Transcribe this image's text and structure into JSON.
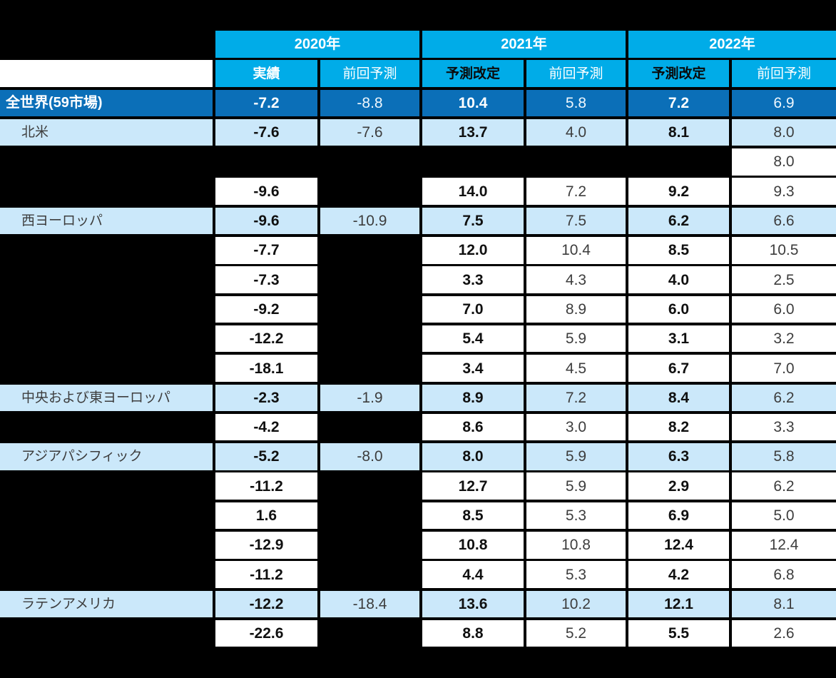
{
  "colors": {
    "page_background": "#000000",
    "header_cyan": "#00ACE8",
    "total_row_blue": "#0B6FB8",
    "region_row_blue": "#CBE8FA",
    "plain_cell_white": "#FFFFFF",
    "emphasis_text": "#101010",
    "secondary_text": "#3D3D3D",
    "header_text_white": "#FFFFFF"
  },
  "table": {
    "year_headers": [
      "2020年",
      "2021年",
      "2022年"
    ],
    "sub_headers": [
      {
        "label": "実績",
        "tone": "white-bold"
      },
      {
        "label": "前回予測",
        "tone": "white"
      },
      {
        "label": "予測改定",
        "tone": "black-bold"
      },
      {
        "label": "前回予測",
        "tone": "white"
      },
      {
        "label": "予測改定",
        "tone": "black-bold"
      },
      {
        "label": "前回予測",
        "tone": "white"
      }
    ],
    "rows": [
      {
        "label": "全世界(59市場)",
        "style": "total",
        "cells": [
          {
            "v": "-7.2",
            "bg": "dark",
            "em": true
          },
          {
            "v": "-8.8",
            "bg": "dark",
            "em": false
          },
          {
            "v": "10.4",
            "bg": "dark",
            "em": true
          },
          {
            "v": "5.8",
            "bg": "dark",
            "em": false
          },
          {
            "v": "7.2",
            "bg": "dark",
            "em": true
          },
          {
            "v": "6.9",
            "bg": "dark",
            "em": false
          }
        ]
      },
      {
        "label": "北米",
        "style": "region",
        "cells": [
          {
            "v": "-7.6",
            "bg": "light",
            "em": true
          },
          {
            "v": "-7.6",
            "bg": "light",
            "em": false
          },
          {
            "v": "13.7",
            "bg": "light",
            "em": true
          },
          {
            "v": "4.0",
            "bg": "light",
            "em": false
          },
          {
            "v": "8.1",
            "bg": "light",
            "em": true
          },
          {
            "v": "8.0",
            "bg": "light",
            "em": false
          }
        ]
      },
      {
        "label": "",
        "style": "hidden",
        "cells": [
          {
            "v": "",
            "bg": "none",
            "em": false
          },
          {
            "v": "",
            "bg": "none",
            "em": false
          },
          {
            "v": "",
            "bg": "none",
            "em": false
          },
          {
            "v": "",
            "bg": "none",
            "em": false
          },
          {
            "v": "",
            "bg": "none",
            "em": false
          },
          {
            "v": "8.0",
            "bg": "white",
            "em": false
          }
        ]
      },
      {
        "label": "",
        "style": "hidden",
        "cells": [
          {
            "v": "-9.6",
            "bg": "white",
            "em": true
          },
          {
            "v": "",
            "bg": "none",
            "em": false
          },
          {
            "v": "14.0",
            "bg": "white",
            "em": true
          },
          {
            "v": "7.2",
            "bg": "white",
            "em": false
          },
          {
            "v": "9.2",
            "bg": "white",
            "em": true
          },
          {
            "v": "9.3",
            "bg": "white",
            "em": false
          }
        ]
      },
      {
        "label": "西ヨーロッパ",
        "style": "region",
        "cells": [
          {
            "v": "-9.6",
            "bg": "light",
            "em": true
          },
          {
            "v": "-10.9",
            "bg": "light",
            "em": false
          },
          {
            "v": "7.5",
            "bg": "light",
            "em": true
          },
          {
            "v": "7.5",
            "bg": "light",
            "em": false
          },
          {
            "v": "6.2",
            "bg": "light",
            "em": true
          },
          {
            "v": "6.6",
            "bg": "light",
            "em": false
          }
        ]
      },
      {
        "label": "",
        "style": "hidden",
        "cells": [
          {
            "v": "-7.7",
            "bg": "white",
            "em": true
          },
          {
            "v": "",
            "bg": "none",
            "em": false
          },
          {
            "v": "12.0",
            "bg": "white",
            "em": true
          },
          {
            "v": "10.4",
            "bg": "white",
            "em": false
          },
          {
            "v": "8.5",
            "bg": "white",
            "em": true
          },
          {
            "v": "10.5",
            "bg": "white",
            "em": false
          }
        ]
      },
      {
        "label": "",
        "style": "hidden",
        "cells": [
          {
            "v": "-7.3",
            "bg": "white",
            "em": true
          },
          {
            "v": "",
            "bg": "none",
            "em": false
          },
          {
            "v": "3.3",
            "bg": "white",
            "em": true
          },
          {
            "v": "4.3",
            "bg": "white",
            "em": false
          },
          {
            "v": "4.0",
            "bg": "white",
            "em": true
          },
          {
            "v": "2.5",
            "bg": "white",
            "em": false
          }
        ]
      },
      {
        "label": "",
        "style": "hidden",
        "cells": [
          {
            "v": "-9.2",
            "bg": "white",
            "em": true
          },
          {
            "v": "",
            "bg": "none",
            "em": false
          },
          {
            "v": "7.0",
            "bg": "white",
            "em": true
          },
          {
            "v": "8.9",
            "bg": "white",
            "em": false
          },
          {
            "v": "6.0",
            "bg": "white",
            "em": true
          },
          {
            "v": "6.0",
            "bg": "white",
            "em": false
          }
        ]
      },
      {
        "label": "",
        "style": "hidden",
        "cells": [
          {
            "v": "-12.2",
            "bg": "white",
            "em": true
          },
          {
            "v": "",
            "bg": "none",
            "em": false
          },
          {
            "v": "5.4",
            "bg": "white",
            "em": true
          },
          {
            "v": "5.9",
            "bg": "white",
            "em": false
          },
          {
            "v": "3.1",
            "bg": "white",
            "em": true
          },
          {
            "v": "3.2",
            "bg": "white",
            "em": false
          }
        ]
      },
      {
        "label": "",
        "style": "hidden",
        "cells": [
          {
            "v": "-18.1",
            "bg": "white",
            "em": true
          },
          {
            "v": "",
            "bg": "none",
            "em": false
          },
          {
            "v": "3.4",
            "bg": "white",
            "em": true
          },
          {
            "v": "4.5",
            "bg": "white",
            "em": false
          },
          {
            "v": "6.7",
            "bg": "white",
            "em": true
          },
          {
            "v": "7.0",
            "bg": "white",
            "em": false
          }
        ]
      },
      {
        "label": "中央および東ヨーロッパ",
        "style": "region",
        "cells": [
          {
            "v": "-2.3",
            "bg": "light",
            "em": true
          },
          {
            "v": "-1.9",
            "bg": "light",
            "em": false
          },
          {
            "v": "8.9",
            "bg": "light",
            "em": true
          },
          {
            "v": "7.2",
            "bg": "light",
            "em": false
          },
          {
            "v": "8.4",
            "bg": "light",
            "em": true
          },
          {
            "v": "6.2",
            "bg": "light",
            "em": false
          }
        ]
      },
      {
        "label": "",
        "style": "hidden",
        "cells": [
          {
            "v": "-4.2",
            "bg": "white",
            "em": true
          },
          {
            "v": "",
            "bg": "none",
            "em": false
          },
          {
            "v": "8.6",
            "bg": "white",
            "em": true
          },
          {
            "v": "3.0",
            "bg": "white",
            "em": false
          },
          {
            "v": "8.2",
            "bg": "white",
            "em": true
          },
          {
            "v": "3.3",
            "bg": "white",
            "em": false
          }
        ]
      },
      {
        "label": "アジアパシフィック",
        "style": "region",
        "cells": [
          {
            "v": "-5.2",
            "bg": "light",
            "em": true
          },
          {
            "v": "-8.0",
            "bg": "light",
            "em": false
          },
          {
            "v": "8.0",
            "bg": "light",
            "em": true
          },
          {
            "v": "5.9",
            "bg": "light",
            "em": false
          },
          {
            "v": "6.3",
            "bg": "light",
            "em": true
          },
          {
            "v": "5.8",
            "bg": "light",
            "em": false
          }
        ]
      },
      {
        "label": "",
        "style": "hidden",
        "cells": [
          {
            "v": "-11.2",
            "bg": "white",
            "em": true
          },
          {
            "v": "",
            "bg": "none",
            "em": false
          },
          {
            "v": "12.7",
            "bg": "white",
            "em": true
          },
          {
            "v": "5.9",
            "bg": "white",
            "em": false
          },
          {
            "v": "2.9",
            "bg": "white",
            "em": true
          },
          {
            "v": "6.2",
            "bg": "white",
            "em": false
          }
        ]
      },
      {
        "label": "",
        "style": "hidden",
        "cells": [
          {
            "v": "1.6",
            "bg": "white",
            "em": true
          },
          {
            "v": "",
            "bg": "none",
            "em": false
          },
          {
            "v": "8.5",
            "bg": "white",
            "em": true
          },
          {
            "v": "5.3",
            "bg": "white",
            "em": false
          },
          {
            "v": "6.9",
            "bg": "white",
            "em": true
          },
          {
            "v": "5.0",
            "bg": "white",
            "em": false
          }
        ]
      },
      {
        "label": "",
        "style": "hidden",
        "cells": [
          {
            "v": "-12.9",
            "bg": "white",
            "em": true
          },
          {
            "v": "",
            "bg": "none",
            "em": false
          },
          {
            "v": "10.8",
            "bg": "white",
            "em": true
          },
          {
            "v": "10.8",
            "bg": "white",
            "em": false
          },
          {
            "v": "12.4",
            "bg": "white",
            "em": true
          },
          {
            "v": "12.4",
            "bg": "white",
            "em": false
          }
        ]
      },
      {
        "label": "",
        "style": "hidden",
        "cells": [
          {
            "v": "-11.2",
            "bg": "white",
            "em": true
          },
          {
            "v": "",
            "bg": "none",
            "em": false
          },
          {
            "v": "4.4",
            "bg": "white",
            "em": true
          },
          {
            "v": "5.3",
            "bg": "white",
            "em": false
          },
          {
            "v": "4.2",
            "bg": "white",
            "em": true
          },
          {
            "v": "6.8",
            "bg": "white",
            "em": false
          }
        ]
      },
      {
        "label": "ラテンアメリカ",
        "style": "region",
        "cells": [
          {
            "v": "-12.2",
            "bg": "light",
            "em": true
          },
          {
            "v": "-18.4",
            "bg": "light",
            "em": false
          },
          {
            "v": "13.6",
            "bg": "light",
            "em": true
          },
          {
            "v": "10.2",
            "bg": "light",
            "em": false
          },
          {
            "v": "12.1",
            "bg": "light",
            "em": true
          },
          {
            "v": "8.1",
            "bg": "light",
            "em": false
          }
        ]
      },
      {
        "label": "",
        "style": "hidden",
        "cells": [
          {
            "v": "-22.6",
            "bg": "white",
            "em": true
          },
          {
            "v": "",
            "bg": "none",
            "em": false
          },
          {
            "v": "8.8",
            "bg": "white",
            "em": true
          },
          {
            "v": "5.2",
            "bg": "white",
            "em": false
          },
          {
            "v": "5.5",
            "bg": "white",
            "em": true
          },
          {
            "v": "2.6",
            "bg": "white",
            "em": false
          }
        ]
      }
    ]
  },
  "chart_data": {
    "type": "table",
    "column_groups": [
      "2020年",
      "2021年",
      "2022年"
    ],
    "columns": [
      "2020年 実績",
      "2020年 前回予測",
      "2021年 予測改定",
      "2021年 前回予測",
      "2022年 予測改定",
      "2022年 前回予測"
    ],
    "rows": [
      {
        "label": "全世界(59市場)",
        "values": [
          -7.2,
          -8.8,
          10.4,
          5.8,
          7.2,
          6.9
        ]
      },
      {
        "label": "北米",
        "values": [
          -7.6,
          -7.6,
          13.7,
          4.0,
          8.1,
          8.0
        ]
      },
      {
        "label": null,
        "values": [
          null,
          null,
          null,
          null,
          null,
          8.0
        ]
      },
      {
        "label": null,
        "values": [
          -9.6,
          null,
          14.0,
          7.2,
          9.2,
          9.3
        ]
      },
      {
        "label": "西ヨーロッパ",
        "values": [
          -9.6,
          -10.9,
          7.5,
          7.5,
          6.2,
          6.6
        ]
      },
      {
        "label": null,
        "values": [
          -7.7,
          null,
          12.0,
          10.4,
          8.5,
          10.5
        ]
      },
      {
        "label": null,
        "values": [
          -7.3,
          null,
          3.3,
          4.3,
          4.0,
          2.5
        ]
      },
      {
        "label": null,
        "values": [
          -9.2,
          null,
          7.0,
          8.9,
          6.0,
          6.0
        ]
      },
      {
        "label": null,
        "values": [
          -12.2,
          null,
          5.4,
          5.9,
          3.1,
          3.2
        ]
      },
      {
        "label": null,
        "values": [
          -18.1,
          null,
          3.4,
          4.5,
          6.7,
          7.0
        ]
      },
      {
        "label": "中央および東ヨーロッパ",
        "values": [
          -2.3,
          -1.9,
          8.9,
          7.2,
          8.4,
          6.2
        ]
      },
      {
        "label": null,
        "values": [
          -4.2,
          null,
          8.6,
          3.0,
          8.2,
          3.3
        ]
      },
      {
        "label": "アジアパシフィック",
        "values": [
          -5.2,
          -8.0,
          8.0,
          5.9,
          6.3,
          5.8
        ]
      },
      {
        "label": null,
        "values": [
          -11.2,
          null,
          12.7,
          5.9,
          2.9,
          6.2
        ]
      },
      {
        "label": null,
        "values": [
          1.6,
          null,
          8.5,
          5.3,
          6.9,
          5.0
        ]
      },
      {
        "label": null,
        "values": [
          -12.9,
          null,
          10.8,
          10.8,
          12.4,
          12.4
        ]
      },
      {
        "label": null,
        "values": [
          -11.2,
          null,
          4.4,
          5.3,
          4.2,
          6.8
        ]
      },
      {
        "label": "ラテンアメリカ",
        "values": [
          -12.2,
          -18.4,
          13.6,
          10.2,
          12.1,
          8.1
        ]
      },
      {
        "label": null,
        "values": [
          -22.6,
          null,
          8.8,
          5.2,
          5.5,
          2.6
        ]
      }
    ]
  }
}
